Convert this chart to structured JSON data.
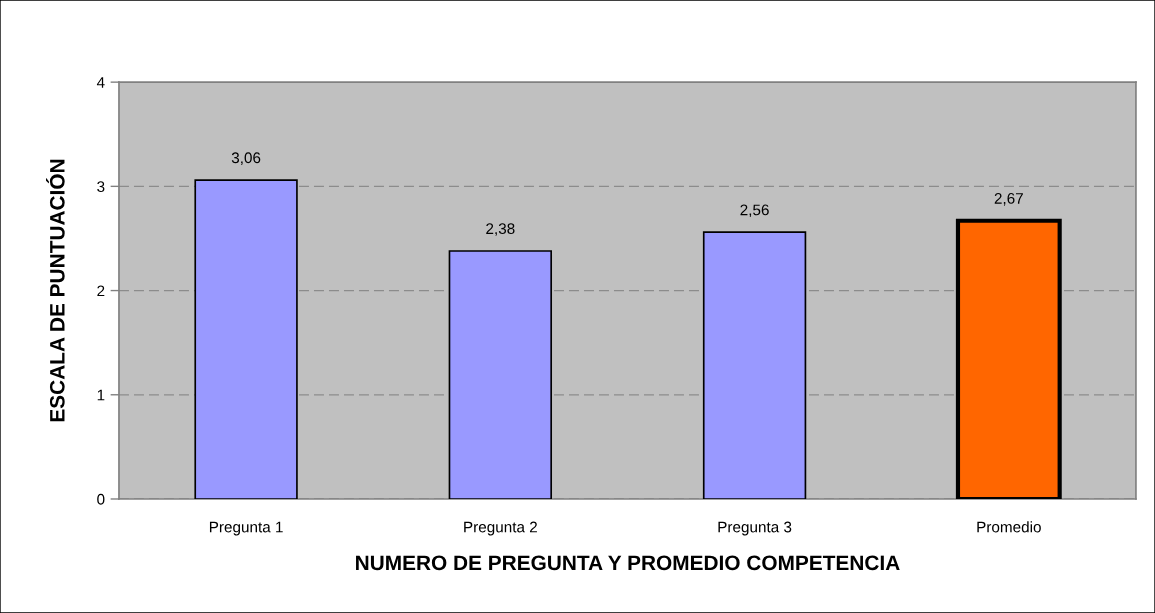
{
  "chart_data": {
    "type": "bar",
    "xlabel": "NUMERO DE PREGUNTA Y PROMEDIO COMPETENCIA",
    "ylabel": "ESCALA DE PUNTUACIÓN",
    "categories": [
      "Pregunta 1",
      "Pregunta 2",
      "Pregunta 3",
      "Promedio"
    ],
    "values": [
      3.06,
      2.38,
      2.56,
      2.67
    ],
    "value_labels": [
      "3,06",
      "2,38",
      "2,56",
      "2,67"
    ],
    "colors": [
      "#9999ff",
      "#9999ff",
      "#9999ff",
      "#ff6600"
    ],
    "ylim": [
      0,
      4
    ],
    "yticks": [
      0,
      1,
      2,
      3,
      4
    ],
    "grid": "y",
    "legend": false
  }
}
